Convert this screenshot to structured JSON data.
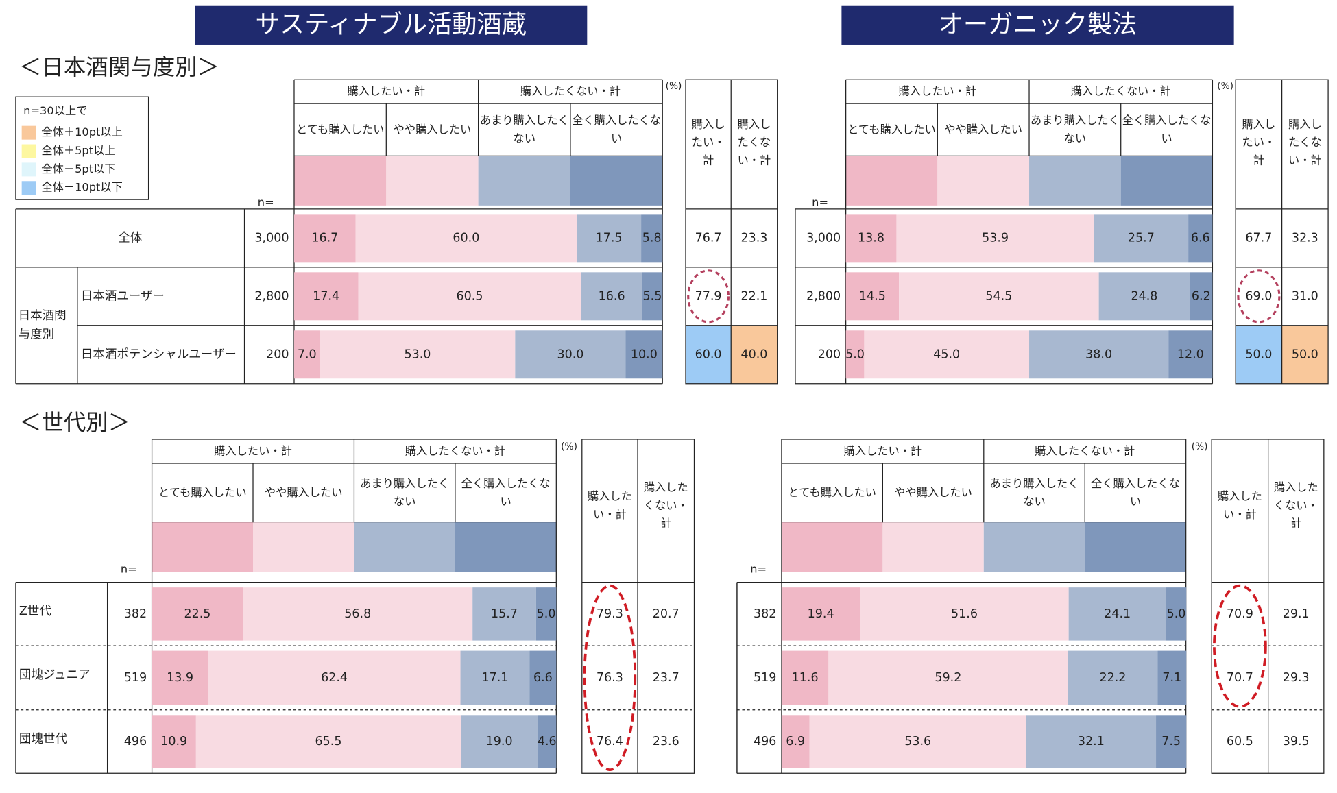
{
  "headers": [
    "サスティナブル活動酒蔵",
    "オーガニック製法"
  ],
  "sections": [
    "＜日本酒関与度別＞",
    "＜世代別＞"
  ],
  "legend": {
    "title": "n=30以上で",
    "items": [
      {
        "label": "全体＋10pt以上",
        "color": "#f9c89b"
      },
      {
        "label": "全体＋5pt以上",
        "color": "#fdf7a0"
      },
      {
        "label": "全体－5pt以下",
        "color": "#dff5fb"
      },
      {
        "label": "全体－10pt以下",
        "color": "#9dcbf5"
      }
    ]
  },
  "chart_data": [
    {
      "type": "bar",
      "stacked": true,
      "xlim": [
        0,
        100
      ],
      "unit": "(%)",
      "n_label": "n=",
      "group_headers": [
        "購入したい・計",
        "購入したくない・計"
      ],
      "row_group": {
        "label": "日本酒関与度別",
        "rows": [
          1,
          2
        ]
      },
      "categories": [
        "全体",
        "日本酒ユーザー",
        "日本酒ポテンシャルユーザー"
      ],
      "n": [
        "3,000",
        "2,800",
        "200"
      ],
      "series": [
        {
          "name": "とても購入したい",
          "color": "#f0b8c6",
          "values": [
            16.7,
            17.4,
            7.0
          ],
          "value_labels": [
            "16.7",
            "17.4",
            "7.0"
          ]
        },
        {
          "name": "やや購入したい",
          "color": "#f8dbe2",
          "values": [
            60.0,
            60.5,
            53.0
          ],
          "value_labels": [
            "60.0",
            "60.5",
            "53.0"
          ]
        },
        {
          "name": "あまり購入したくない",
          "color": "#a8b8d0",
          "values": [
            17.5,
            16.6,
            30.0
          ],
          "value_labels": [
            "17.5",
            "16.6",
            "30.0"
          ]
        },
        {
          "name": "全く購入したくない",
          "color": "#7f97bb",
          "values": [
            5.8,
            5.5,
            10.0
          ],
          "value_labels": [
            "5.8",
            "5.5",
            "10.0"
          ]
        }
      ],
      "summary": {
        "columns": [
          "購入したい・計",
          "購入したくない・計"
        ],
        "rows": [
          [
            "76.7",
            "23.3"
          ],
          [
            "77.9",
            "22.1"
          ],
          [
            "60.0",
            "40.0"
          ]
        ],
        "highlights": [
          {
            "row": 2,
            "col": 0,
            "color": "#9dcbf5"
          },
          {
            "row": 2,
            "col": 1,
            "color": "#f9c89b"
          }
        ],
        "circled_rows": [
          1
        ]
      }
    },
    {
      "type": "bar",
      "stacked": true,
      "xlim": [
        0,
        100
      ],
      "unit": "(%)",
      "n_label": "n=",
      "group_headers": [
        "購入したい・計",
        "購入したくない・計"
      ],
      "n": [
        "3,000",
        "2,800",
        "200"
      ],
      "series": [
        {
          "name": "とても購入したい",
          "color": "#f0b8c6",
          "values": [
            13.8,
            14.5,
            5.0
          ],
          "value_labels": [
            "13.8",
            "14.5",
            "5.0"
          ]
        },
        {
          "name": "やや購入したい",
          "color": "#f8dbe2",
          "values": [
            53.9,
            54.5,
            45.0
          ],
          "value_labels": [
            "53.9",
            "54.5",
            "45.0"
          ]
        },
        {
          "name": "あまり購入したくない",
          "color": "#a8b8d0",
          "values": [
            25.7,
            24.8,
            38.0
          ],
          "value_labels": [
            "25.7",
            "24.8",
            "38.0"
          ]
        },
        {
          "name": "全く購入したくない",
          "color": "#7f97bb",
          "values": [
            6.6,
            6.2,
            12.0
          ],
          "value_labels": [
            "6.6",
            "6.2",
            "12.0"
          ]
        }
      ],
      "summary": {
        "columns": [
          "購入したい・計",
          "購入したくない・計"
        ],
        "rows": [
          [
            "67.7",
            "32.3"
          ],
          [
            "69.0",
            "31.0"
          ],
          [
            "50.0",
            "50.0"
          ]
        ],
        "highlights": [
          {
            "row": 2,
            "col": 0,
            "color": "#9dcbf5"
          },
          {
            "row": 2,
            "col": 1,
            "color": "#f9c89b"
          }
        ],
        "circled_rows": [
          1
        ]
      }
    },
    {
      "type": "bar",
      "stacked": true,
      "xlim": [
        0,
        100
      ],
      "unit": "(%)",
      "n_label": "n=",
      "group_headers": [
        "購入したい・計",
        "購入したくない・計"
      ],
      "categories": [
        "Z世代",
        "団塊ジュニア",
        "団塊世代"
      ],
      "n": [
        "382",
        "519",
        "496"
      ],
      "series": [
        {
          "name": "とても購入したい",
          "color": "#f0b8c6",
          "values": [
            22.5,
            13.9,
            10.9
          ],
          "value_labels": [
            "22.5",
            "13.9",
            "10.9"
          ]
        },
        {
          "name": "やや購入したい",
          "color": "#f8dbe2",
          "values": [
            56.8,
            62.4,
            65.5
          ],
          "value_labels": [
            "56.8",
            "62.4",
            "65.5"
          ]
        },
        {
          "name": "あまり購入したくない",
          "color": "#a8b8d0",
          "values": [
            15.7,
            17.1,
            19.0
          ],
          "value_labels": [
            "15.7",
            "17.1",
            "19.0"
          ]
        },
        {
          "name": "全く購入したくない",
          "color": "#7f97bb",
          "values": [
            5.0,
            6.6,
            4.6
          ],
          "value_labels": [
            "5.0",
            "6.6",
            "4.6"
          ]
        }
      ],
      "summary": {
        "columns": [
          "購入したい・計",
          "購入したくない・計"
        ],
        "rows": [
          [
            "79.3",
            "20.7"
          ],
          [
            "76.3",
            "23.7"
          ],
          [
            "76.4",
            "23.6"
          ]
        ],
        "circled_rows": [
          0,
          1,
          2
        ]
      }
    },
    {
      "type": "bar",
      "stacked": true,
      "xlim": [
        0,
        100
      ],
      "unit": "(%)",
      "n_label": "n=",
      "group_headers": [
        "購入したい・計",
        "購入したくない・計"
      ],
      "n": [
        "382",
        "519",
        "496"
      ],
      "series": [
        {
          "name": "とても購入したい",
          "color": "#f0b8c6",
          "values": [
            19.4,
            11.6,
            6.9
          ],
          "value_labels": [
            "19.4",
            "11.6",
            "6.9"
          ]
        },
        {
          "name": "やや購入したい",
          "color": "#f8dbe2",
          "values": [
            51.6,
            59.2,
            53.6
          ],
          "value_labels": [
            "51.6",
            "59.2",
            "53.6"
          ]
        },
        {
          "name": "あまり購入したくない",
          "color": "#a8b8d0",
          "values": [
            24.1,
            22.2,
            32.1
          ],
          "value_labels": [
            "24.1",
            "22.2",
            "32.1"
          ]
        },
        {
          "name": "全く購入したくない",
          "color": "#7f97bb",
          "values": [
            5.0,
            7.1,
            7.5
          ],
          "value_labels": [
            "5.0",
            "7.1",
            "7.5"
          ]
        }
      ],
      "summary": {
        "columns": [
          "購入したい・計",
          "購入したくない・計"
        ],
        "rows": [
          [
            "70.9",
            "29.1"
          ],
          [
            "70.7",
            "29.3"
          ],
          [
            "60.5",
            "39.5"
          ]
        ],
        "circled_rows": [
          0,
          1
        ]
      }
    }
  ]
}
